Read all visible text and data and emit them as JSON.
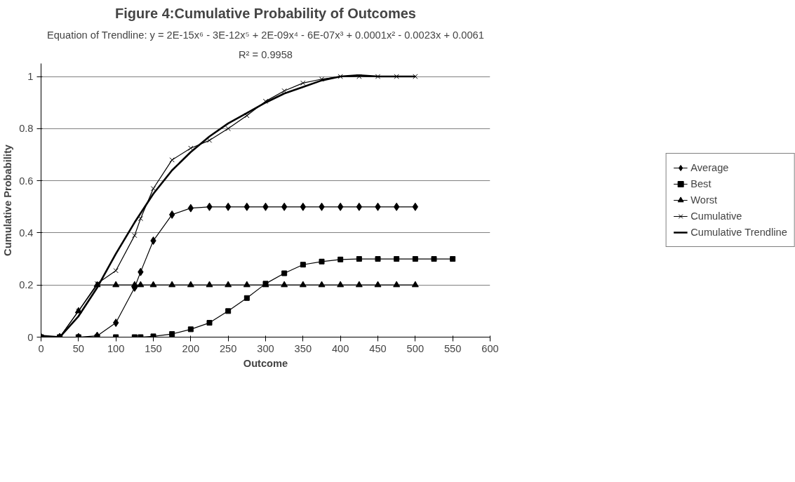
{
  "chart_data": {
    "type": "line",
    "title": "Figure 4:Cumulative Probability of Outcomes",
    "subtitle": "Equation of Trendline: y = 2E-15x⁶ - 3E-12x⁵ + 2E-09x⁴ - 6E-07x³ + 0.0001x² - 0.0023x + 0.0061",
    "annotations": [
      "R² = 0.9958"
    ],
    "xlabel": "Outcome",
    "ylabel": "Cumulative Probability",
    "xlim": [
      0,
      600
    ],
    "xticks": [
      0,
      50,
      100,
      150,
      200,
      250,
      300,
      350,
      400,
      450,
      500,
      550,
      600
    ],
    "ylim": [
      0,
      1.05
    ],
    "yticks": [
      0,
      0.2,
      0.4,
      0.6,
      0.8,
      1
    ],
    "grid": "y",
    "legend": "right",
    "series": [
      {
        "name": "Average",
        "color": "#000000",
        "marker": "diamond",
        "x": [
          0,
          25,
          50,
          75,
          100,
          125,
          133,
          150,
          175,
          200,
          225,
          250,
          275,
          300,
          325,
          350,
          375,
          400,
          425,
          450,
          475,
          500
        ],
        "values": [
          0,
          0,
          0,
          0.005,
          0.055,
          0.19,
          0.25,
          0.37,
          0.47,
          0.495,
          0.5,
          0.5,
          0.5,
          0.5,
          0.5,
          0.5,
          0.5,
          0.5,
          0.5,
          0.5,
          0.5,
          0.5
        ]
      },
      {
        "name": "Best",
        "color": "#000000",
        "marker": "square",
        "x": [
          0,
          25,
          50,
          75,
          100,
          125,
          133,
          150,
          175,
          200,
          225,
          250,
          275,
          300,
          325,
          350,
          375,
          400,
          425,
          450,
          475,
          500,
          525,
          550
        ],
        "values": [
          0,
          0,
          0,
          0,
          0,
          0,
          0,
          0.003,
          0.012,
          0.03,
          0.055,
          0.1,
          0.15,
          0.205,
          0.245,
          0.278,
          0.29,
          0.298,
          0.3,
          0.3,
          0.3,
          0.3,
          0.3,
          0.3
        ]
      },
      {
        "name": "Worst",
        "color": "#000000",
        "marker": "triangle",
        "x": [
          0,
          25,
          50,
          75,
          100,
          125,
          133,
          150,
          175,
          200,
          225,
          250,
          275,
          300,
          325,
          350,
          375,
          400,
          425,
          450,
          475,
          500
        ],
        "values": [
          0,
          0,
          0.1,
          0.2,
          0.2,
          0.2,
          0.2,
          0.2,
          0.2,
          0.2,
          0.2,
          0.2,
          0.2,
          0.2,
          0.2,
          0.2,
          0.2,
          0.2,
          0.2,
          0.2,
          0.2,
          0.2
        ]
      },
      {
        "name": "Cumulative",
        "color": "#000000",
        "marker": "cross",
        "x": [
          0,
          25,
          50,
          75,
          100,
          125,
          133,
          150,
          175,
          200,
          225,
          250,
          275,
          300,
          325,
          350,
          375,
          400,
          425,
          450,
          475,
          500
        ],
        "values": [
          0,
          0,
          0.1,
          0.205,
          0.255,
          0.39,
          0.455,
          0.57,
          0.68,
          0.725,
          0.755,
          0.8,
          0.85,
          0.905,
          0.945,
          0.975,
          0.99,
          1,
          1,
          1,
          1,
          1
        ]
      },
      {
        "name": "Cumulative Trendline",
        "color": "#000000",
        "marker": "none",
        "x": [
          0,
          25,
          50,
          75,
          100,
          125,
          150,
          175,
          200,
          225,
          250,
          275,
          300,
          325,
          350,
          375,
          400,
          425,
          450,
          475,
          500
        ],
        "values": [
          0.005,
          0,
          0.08,
          0.19,
          0.32,
          0.44,
          0.55,
          0.64,
          0.71,
          0.77,
          0.82,
          0.86,
          0.9,
          0.935,
          0.96,
          0.985,
          1,
          1.005,
          1,
          1,
          1
        ]
      }
    ]
  }
}
